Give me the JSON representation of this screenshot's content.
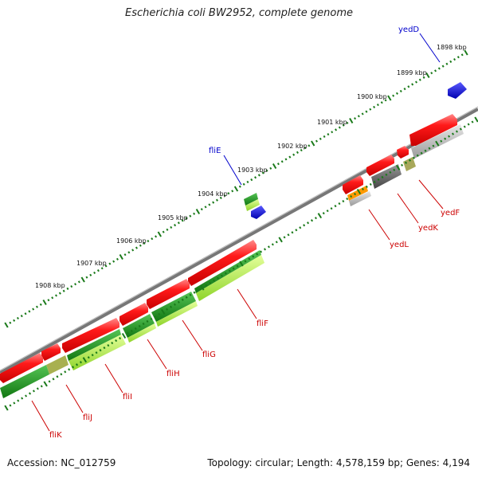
{
  "title": "Escherichia coli BW2952, complete genome",
  "accession": "Accession: NC_012759",
  "summary": "Topology: circular; Length: 4,578,159 bp; Genes: 4,194",
  "ruler": {
    "labels": [
      "1898 kbp",
      "1899 kbp",
      "1900 kbp",
      "1901 kbp",
      "1902 kbp",
      "1903 kbp",
      "1904 kbp",
      "1905 kbp",
      "1906 kbp",
      "1907 kbp",
      "1908 kbp"
    ]
  },
  "genes": [
    {
      "name": "yedD",
      "color": "#0000cc"
    },
    {
      "name": "fliE",
      "color": "#0000cc"
    },
    {
      "name": "yedF",
      "color": "#cc0000"
    },
    {
      "name": "yedK",
      "color": "#cc0000"
    },
    {
      "name": "yedL",
      "color": "#cc0000"
    },
    {
      "name": "fliF",
      "color": "#cc0000"
    },
    {
      "name": "fliG",
      "color": "#cc0000"
    },
    {
      "name": "fliH",
      "color": "#cc0000"
    },
    {
      "name": "fliI",
      "color": "#cc0000"
    },
    {
      "name": "fliJ",
      "color": "#cc0000"
    },
    {
      "name": "fliK",
      "color": "#cc0000"
    }
  ],
  "colors": {
    "cds": "#ff0000",
    "gene_blue": "#1515e6",
    "backbone": "#888888",
    "tick_green": "#1a7a1a",
    "gc_dark": "#1d8a1d",
    "gc_light": "#a8e04a",
    "skew_grey": "#9a9a9a",
    "orange": "#ff9900"
  }
}
